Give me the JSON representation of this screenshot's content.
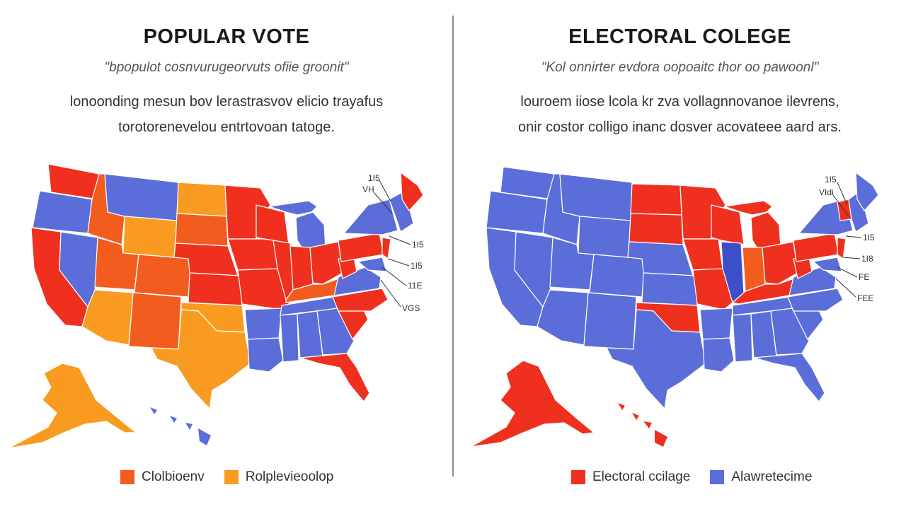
{
  "colors": {
    "red": "#f0301f",
    "orange_red": "#f25c1e",
    "orange": "#f99b20",
    "blue": "#5b6dd8",
    "dark_blue": "#3d4fc8"
  },
  "left": {
    "title": "POPULAR VOTE",
    "subtitle": "\"bpopulot cosnvurugeorvuts ofiie groonit\"",
    "desc_line1": "lonoonding mesun bov lerastrasvov elicio trayafus",
    "desc_line2": "torotorenevelou entrtovoan tatoge.",
    "state_labels": [
      "1I5",
      "VH",
      "1I5",
      "1I5",
      "11E",
      "VGS"
    ],
    "legend": [
      {
        "label": "Clolbioenv",
        "color": "#f25c1e"
      },
      {
        "label": "Rolplevieoolop",
        "color": "#f99b20"
      }
    ]
  },
  "right": {
    "title": "ELECTORAL COLEGE",
    "subtitle": "\"Kol onnirter evdora oopoaitc thor oo pawoonl\"",
    "desc_line1": "louroem iiose lcola kr zva vollagnnovanoe ilevrens,",
    "desc_line2": "onir costor colligo inanc dosver acovateee aard ars.",
    "state_labels": [
      "1I5",
      "VIdi",
      "1I5",
      "1I8",
      "FE",
      "FEE"
    ],
    "legend": [
      {
        "label": "Electoral ccilage",
        "color": "#f0301f"
      },
      {
        "label": "Alawretecime",
        "color": "#5b6dd8"
      }
    ]
  }
}
